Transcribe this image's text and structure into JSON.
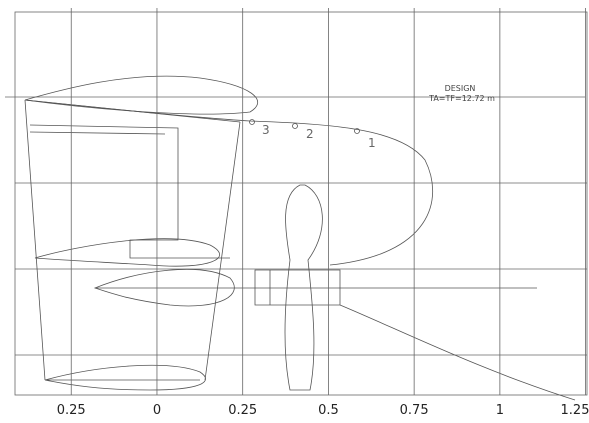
{
  "annotation": {
    "title": "DESIGN",
    "subtitle": "TA=TF=12.72 m"
  },
  "stations": [
    "3",
    "2",
    "1"
  ],
  "axis": {
    "xlim": [
      -0.414,
      1.257
    ],
    "xticks": [
      {
        "value": -0.25,
        "label": "0.25"
      },
      0,
      0.25,
      0.5,
      0.75,
      1,
      1.25
    ]
  }
}
